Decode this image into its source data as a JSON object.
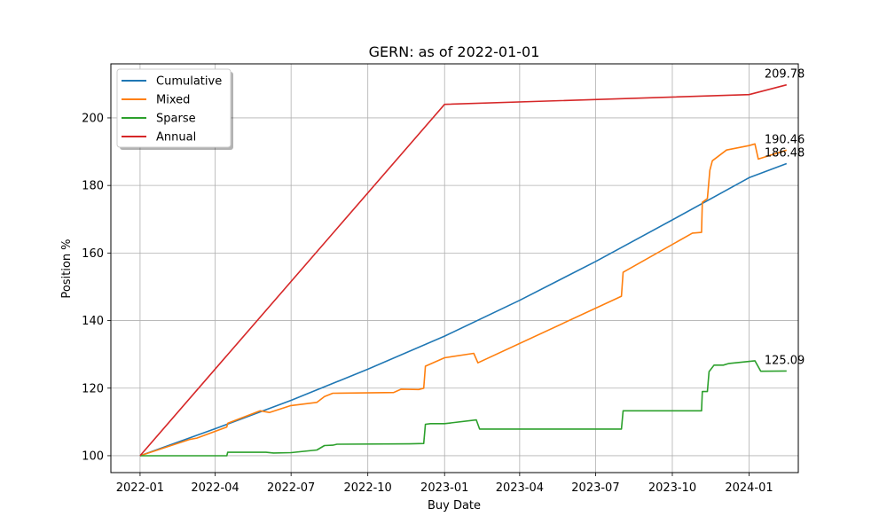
{
  "chart_data": {
    "type": "line",
    "title": "GERN: as of 2022-01-01",
    "xlabel": "Buy Date",
    "ylabel": "Position %",
    "xlim": [
      "2021-11-27",
      "2024-02-29"
    ],
    "ylim": [
      95,
      216
    ],
    "xticks": [
      "2022-01",
      "2022-04",
      "2022-07",
      "2022-10",
      "2023-01",
      "2023-04",
      "2023-07",
      "2023-10",
      "2024-01"
    ],
    "yticks": [
      100,
      120,
      140,
      160,
      180,
      200
    ],
    "grid": true,
    "legend_position": "top-left",
    "series": [
      {
        "name": "Cumulative",
        "color": "#1f77b4",
        "points": [
          [
            "2022-01-01",
            100
          ],
          [
            "2022-04-01",
            108
          ],
          [
            "2022-07-01",
            116.4
          ],
          [
            "2022-10-01",
            125.6
          ],
          [
            "2023-01-01",
            135.4
          ],
          [
            "2023-04-01",
            146
          ],
          [
            "2023-07-01",
            157.5
          ],
          [
            "2023-10-01",
            169.8
          ],
          [
            "2024-01-01",
            182.3
          ],
          [
            "2024-02-15",
            186.48
          ]
        ]
      },
      {
        "name": "Mixed",
        "color": "#ff7f0e",
        "points": [
          [
            "2022-01-01",
            100
          ],
          [
            "2022-03-01",
            104.8
          ],
          [
            "2022-03-10",
            105.2
          ],
          [
            "2022-04-15",
            108.5
          ],
          [
            "2022-04-16",
            109.6
          ],
          [
            "2022-05-25",
            113.3
          ],
          [
            "2022-06-05",
            112.8
          ],
          [
            "2022-06-30",
            114.8
          ],
          [
            "2022-08-01",
            115.8
          ],
          [
            "2022-08-10",
            117.5
          ],
          [
            "2022-08-20",
            118.5
          ],
          [
            "2022-11-01",
            118.7
          ],
          [
            "2022-11-10",
            119.7
          ],
          [
            "2022-12-01",
            119.6
          ],
          [
            "2022-12-07",
            120
          ],
          [
            "2022-12-09",
            126.5
          ],
          [
            "2023-01-01",
            129
          ],
          [
            "2023-02-05",
            130.3
          ],
          [
            "2023-02-10",
            127.5
          ],
          [
            "2023-08-01",
            147.2
          ],
          [
            "2023-08-03",
            154.3
          ],
          [
            "2023-10-25",
            165.9
          ],
          [
            "2023-11-05",
            166.1
          ],
          [
            "2023-11-06",
            175
          ],
          [
            "2023-11-12",
            176.1
          ],
          [
            "2023-11-15",
            184.5
          ],
          [
            "2023-11-18",
            187.3
          ],
          [
            "2023-12-05",
            190.5
          ],
          [
            "2024-01-01",
            191.8
          ],
          [
            "2024-01-08",
            192.3
          ],
          [
            "2024-01-12",
            187.8
          ],
          [
            "2024-02-15",
            190.46
          ]
        ]
      },
      {
        "name": "Sparse",
        "color": "#2ca02c",
        "points": [
          [
            "2022-01-01",
            100
          ],
          [
            "2022-04-15",
            100
          ],
          [
            "2022-04-16",
            101
          ],
          [
            "2022-06-01",
            101
          ],
          [
            "2022-06-10",
            100.8
          ],
          [
            "2022-07-01",
            100.9
          ],
          [
            "2022-08-01",
            101.7
          ],
          [
            "2022-08-10",
            103
          ],
          [
            "2022-08-20",
            103.1
          ],
          [
            "2022-08-25",
            103.4
          ],
          [
            "2022-11-20",
            103.5
          ],
          [
            "2022-12-07",
            103.6
          ],
          [
            "2022-12-09",
            109.3
          ],
          [
            "2022-12-15",
            109.5
          ],
          [
            "2023-01-01",
            109.5
          ],
          [
            "2023-02-08",
            110.6
          ],
          [
            "2023-02-12",
            107.9
          ],
          [
            "2023-08-01",
            107.9
          ],
          [
            "2023-08-03",
            113.3
          ],
          [
            "2023-11-01",
            113.3
          ],
          [
            "2023-11-05",
            113.3
          ],
          [
            "2023-11-06",
            119
          ],
          [
            "2023-11-12",
            119
          ],
          [
            "2023-11-14",
            124.9
          ],
          [
            "2023-11-20",
            126.8
          ],
          [
            "2023-12-01",
            126.8
          ],
          [
            "2023-12-08",
            127.3
          ],
          [
            "2024-01-08",
            128.1
          ],
          [
            "2024-01-15",
            125
          ],
          [
            "2024-02-15",
            125.09
          ]
        ]
      },
      {
        "name": "Annual",
        "color": "#d62728",
        "points": [
          [
            "2022-01-01",
            100
          ],
          [
            "2023-01-01",
            204
          ],
          [
            "2024-01-01",
            206.9
          ],
          [
            "2024-02-15",
            209.78
          ]
        ]
      }
    ],
    "annotations": [
      {
        "text": "209.78",
        "x": "2024-02-15",
        "y": 209.78
      },
      {
        "text": "190.46",
        "x": "2024-02-15",
        "y": 190.46
      },
      {
        "text": "186.48",
        "x": "2024-02-15",
        "y": 186.48
      },
      {
        "text": "125.09",
        "x": "2024-02-15",
        "y": 125.09
      }
    ]
  }
}
